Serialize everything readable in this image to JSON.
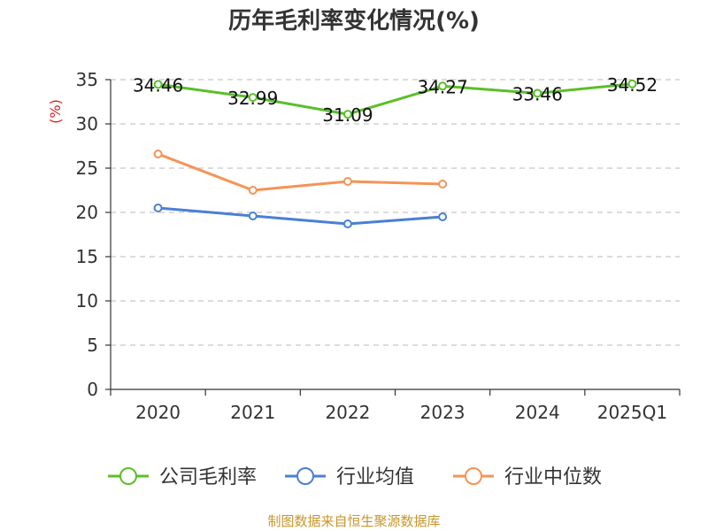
{
  "chart_data": {
    "type": "line",
    "title": "历年毛利率变化情况(%)",
    "ylabel": "(%)",
    "xlabel": "",
    "categories": [
      "2020",
      "2021",
      "2022",
      "2023",
      "2024",
      "2025Q1"
    ],
    "ylim": [
      0,
      35
    ],
    "yticks": [
      0,
      5,
      10,
      15,
      20,
      25,
      30,
      35
    ],
    "grid": true,
    "legend_position": "bottom",
    "series": [
      {
        "name": "公司毛利率",
        "color": "#5bbf2a",
        "values": [
          34.46,
          32.99,
          31.09,
          34.27,
          33.46,
          34.52
        ],
        "labels": [
          "34.46",
          "32.99",
          "31.09",
          "34.27",
          "33.46",
          "34.52"
        ]
      },
      {
        "name": "行业均值",
        "color": "#4a7fd6",
        "values": [
          20.5,
          19.6,
          18.7,
          19.5,
          null,
          null
        ]
      },
      {
        "name": "行业中位数",
        "color": "#f59357",
        "values": [
          26.6,
          22.5,
          23.5,
          23.2,
          null,
          null
        ]
      }
    ]
  },
  "source": "制图数据来自恒生聚源数据库"
}
